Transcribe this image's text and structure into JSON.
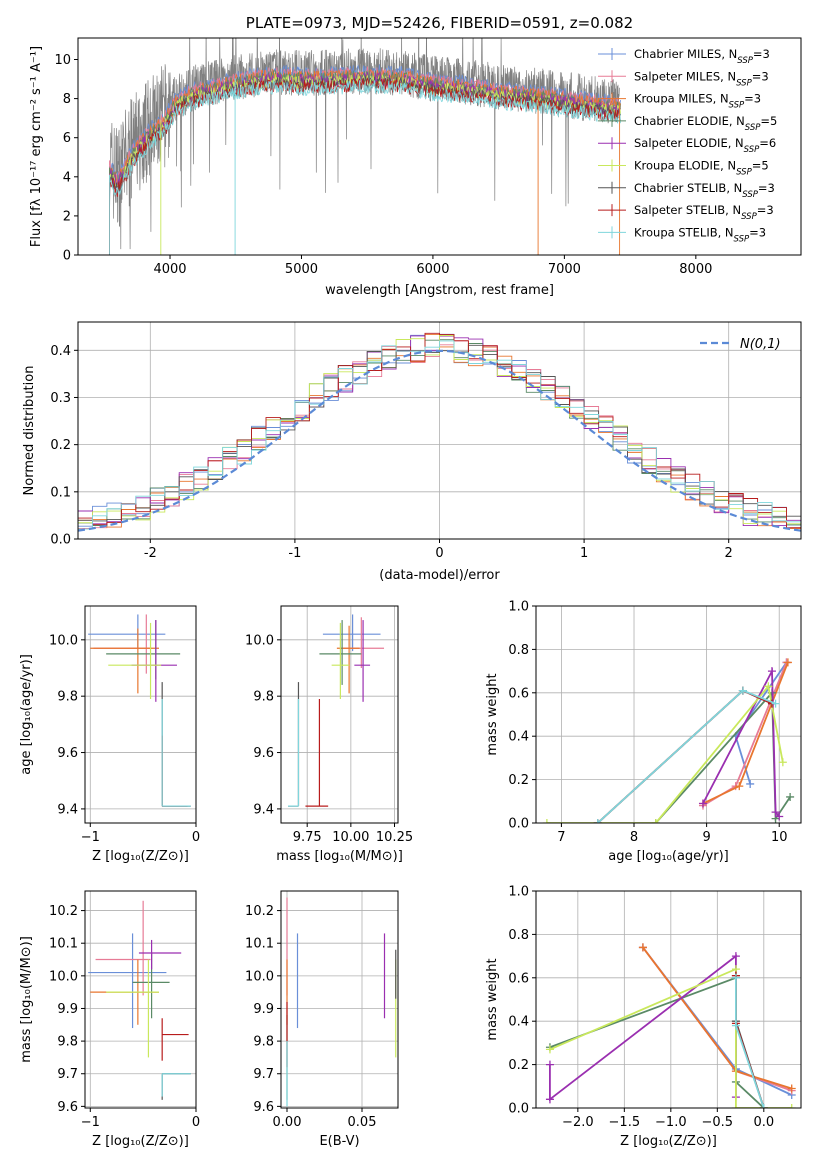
{
  "colors": {
    "Chabrier MILES": "#6a8fd8",
    "Salpeter MILES": "#e77b96",
    "Kroupa MILES": "#e8762f",
    "Chabrier ELODIE": "#5a8a66",
    "Salpeter ELODIE": "#9a2fb0",
    "Kroupa ELODIE": "#c9e85c",
    "Chabrier STELIB": "#555555",
    "Salpeter STELIB": "#b81c1c",
    "Kroupa STELIB": "#7fd6dc",
    "data": "#808080",
    "normal": "#5b8ad6"
  },
  "chart_data": [
    {
      "id": "spectrum",
      "type": "line",
      "title": "PLATE=0973, MJD=52426, FIBERID=0591, z=0.082",
      "xlabel": "wavelength [Angstrom, rest frame]",
      "ylabel": "Flux [fλ 10⁻¹⁷ erg cm⁻² s⁻¹ A⁻¹]",
      "xlim": [
        3300,
        8800
      ],
      "ylim": [
        0,
        11.1
      ],
      "xticks": [
        4000,
        5000,
        6000,
        7000,
        8000
      ],
      "yticks": [
        0,
        2,
        4,
        6,
        8,
        10
      ],
      "data_range": [
        3540,
        7420
      ],
      "model_range": [
        3540,
        7430
      ],
      "continuum": {
        "x": [
          3540,
          3600,
          3680,
          3750,
          3850,
          3950,
          4050,
          4200,
          4400,
          4600,
          4800,
          5000,
          5200,
          5400,
          5600,
          5800,
          6000,
          6200,
          6400,
          6600,
          6800,
          7000,
          7200,
          7430
        ],
        "y": [
          4.6,
          4.0,
          5.0,
          5.8,
          6.5,
          7.0,
          8.1,
          8.6,
          8.9,
          9.2,
          9.4,
          9.3,
          9.3,
          9.4,
          9.4,
          9.3,
          9.0,
          8.9,
          8.7,
          8.5,
          8.4,
          8.2,
          8.0,
          7.8
        ]
      },
      "legend": [
        {
          "label": "Chabrier MILES, N",
          "sub": "SSP",
          "value": "=3"
        },
        {
          "label": "Salpeter MILES, N",
          "sub": "SSP",
          "value": "=3"
        },
        {
          "label": "Kroupa MILES, N",
          "sub": "SSP",
          "value": "=3"
        },
        {
          "label": "Chabrier ELODIE, N",
          "sub": "SSP",
          "value": "=5"
        },
        {
          "label": "Salpeter ELODIE, N",
          "sub": "SSP",
          "value": "=6"
        },
        {
          "label": "Kroupa ELODIE, N",
          "sub": "SSP",
          "value": "=5"
        },
        {
          "label": "Chabrier STELIB, N",
          "sub": "SSP",
          "value": "=3"
        },
        {
          "label": "Salpeter STELIB, N",
          "sub": "SSP",
          "value": "=3"
        },
        {
          "label": "Kroupa STELIB, N",
          "sub": "SSP",
          "value": "=3"
        }
      ],
      "legend_placement": "upper right",
      "grid": false
    },
    {
      "id": "residuals",
      "type": "histogram",
      "xlabel": "(data-model)/error",
      "ylabel": "Normed distribution",
      "xlim": [
        -2.5,
        2.5
      ],
      "ylim": [
        0,
        0.46
      ],
      "xticks": [
        -2,
        -1,
        0,
        1,
        2
      ],
      "yticks": [
        0.0,
        0.1,
        0.2,
        0.3,
        0.4
      ],
      "bin_width": 0.1,
      "legend": "N(0,1)",
      "legend_placement": "upper right",
      "grid": true
    },
    {
      "id": "age-vs-z",
      "type": "errorbar",
      "xlabel": "Z [log₁₀(Z/Z⊙)]",
      "ylabel": "age  [log₁₀(age/yr)]",
      "xlim": [
        -1.05,
        0.0
      ],
      "ylim": [
        9.35,
        10.12
      ],
      "xticks": [
        -1,
        0
      ],
      "xtick_labels": [
        "−1",
        "0"
      ],
      "yticks": [
        9.4,
        9.6,
        9.8,
        10.0
      ],
      "points": [
        {
          "s": "Chabrier MILES",
          "x": -0.55,
          "y": 10.02,
          "xerr": [
            0.47,
            0.26
          ],
          "yerr": [
            0.05,
            0.07
          ]
        },
        {
          "s": "Salpeter MILES",
          "x": -0.47,
          "y": 9.97,
          "xerr": [
            0.5,
            0.05
          ],
          "yerr": [
            0.09,
            0.12
          ]
        },
        {
          "s": "Kroupa MILES",
          "x": -0.55,
          "y": 9.97,
          "xerr": [
            0.45,
            0.2
          ],
          "yerr": [
            0.16,
            0.07
          ]
        },
        {
          "s": "Chabrier ELODIE",
          "x": -0.38,
          "y": 9.95,
          "xerr": [
            0.47,
            0.23
          ],
          "yerr": [
            0.09,
            0.12
          ]
        },
        {
          "s": "Salpeter ELODIE",
          "x": -0.38,
          "y": 9.91,
          "xerr": [
            0.23,
            0.2
          ],
          "yerr": [
            0.13,
            0.16
          ]
        },
        {
          "s": "Kroupa ELODIE",
          "x": -0.43,
          "y": 9.91,
          "xerr": [
            0.4,
            0.1
          ],
          "yerr": [
            0.12,
            0.15
          ]
        },
        {
          "s": "Chabrier STELIB",
          "x": -0.32,
          "y": 9.41,
          "xerr": [
            0.0,
            0.27
          ],
          "yerr": [
            0.0,
            0.44
          ]
        },
        {
          "s": "Salpeter STELIB",
          "x": -0.32,
          "y": 9.41,
          "xerr": [
            0.0,
            0.24
          ],
          "yerr": [
            0.0,
            0.25
          ]
        },
        {
          "s": "Kroupa STELIB",
          "x": -0.32,
          "y": 9.41,
          "xerr": [
            0.0,
            0.27
          ],
          "yerr": [
            0.0,
            0.38
          ]
        }
      ],
      "grid": true
    },
    {
      "id": "age-vs-mass",
      "type": "errorbar",
      "xlabel": "mass [log₁₀(M/M⊙)]",
      "ylabel": "",
      "xlim": [
        9.6,
        10.27
      ],
      "ylim": [
        9.35,
        10.12
      ],
      "xticks": [
        9.75,
        10.0,
        10.25
      ],
      "xtick_labels": [
        "9.75",
        "10.00",
        "10.25"
      ],
      "yticks": [
        9.4,
        9.6,
        9.8,
        10.0
      ],
      "points": [
        {
          "s": "Chabrier MILES",
          "x": 10.01,
          "y": 10.02,
          "xerr": [
            0.17,
            0.16
          ],
          "yerr": [
            0.06,
            0.07
          ]
        },
        {
          "s": "Salpeter MILES",
          "x": 10.06,
          "y": 9.97,
          "xerr": [
            0.12,
            0.13
          ],
          "yerr": [
            0.07,
            0.11
          ]
        },
        {
          "s": "Kroupa MILES",
          "x": 9.99,
          "y": 9.97,
          "xerr": [
            0.07,
            0.06
          ],
          "yerr": [
            0.16,
            0.08
          ]
        },
        {
          "s": "Chabrier ELODIE",
          "x": 9.95,
          "y": 9.95,
          "xerr": [
            0.13,
            0.11
          ],
          "yerr": [
            0.11,
            0.12
          ]
        },
        {
          "s": "Salpeter ELODIE",
          "x": 10.07,
          "y": 9.91,
          "xerr": [
            0.05,
            0.04
          ],
          "yerr": [
            0.13,
            0.16
          ]
        },
        {
          "s": "Kroupa ELODIE",
          "x": 9.94,
          "y": 9.91,
          "xerr": [
            0.05,
            0.05
          ],
          "yerr": [
            0.12,
            0.15
          ]
        },
        {
          "s": "Chabrier STELIB",
          "x": 9.7,
          "y": 9.41,
          "xerr": [
            0.06,
            0.0
          ],
          "yerr": [
            0.0,
            0.44
          ]
        },
        {
          "s": "Salpeter STELIB",
          "x": 9.82,
          "y": 9.41,
          "xerr": [
            0.08,
            0.05
          ],
          "yerr": [
            0.0,
            0.38
          ]
        },
        {
          "s": "Kroupa STELIB",
          "x": 9.7,
          "y": 9.41,
          "xerr": [
            0.06,
            0.0
          ],
          "yerr": [
            0.0,
            0.38
          ]
        }
      ],
      "grid": true
    },
    {
      "id": "weight-vs-age",
      "type": "line",
      "xlabel": "age  [log₁₀(age/yr)]",
      "ylabel": "mass weight",
      "xlim": [
        6.65,
        10.3
      ],
      "ylim": [
        0,
        1.0
      ],
      "xticks": [
        7,
        8,
        9,
        10
      ],
      "yticks": [
        0.0,
        0.2,
        0.4,
        0.6,
        0.8,
        1.0
      ],
      "series": [
        {
          "s": "Chabrier MILES",
          "x": [
            9.6,
            9.4,
            10.1
          ],
          "y": [
            0.18,
            0.4,
            0.74
          ]
        },
        {
          "s": "Salpeter MILES",
          "x": [
            8.95,
            9.4,
            10.1
          ],
          "y": [
            0.08,
            0.17,
            0.74
          ]
        },
        {
          "s": "Kroupa MILES",
          "x": [
            8.95,
            9.45,
            10.12
          ],
          "y": [
            0.09,
            0.17,
            0.74
          ]
        },
        {
          "s": "Chabrier ELODIE",
          "x": [
            8.3,
            9.9,
            9.95,
            10.15
          ],
          "y": [
            0.0,
            0.6,
            0.02,
            0.12
          ]
        },
        {
          "s": "Salpeter ELODIE",
          "x": [
            8.95,
            9.9,
            9.95,
            10.0
          ],
          "y": [
            0.09,
            0.7,
            0.05,
            0.03
          ]
        },
        {
          "s": "Kroupa ELODIE",
          "x": [
            6.8,
            8.3,
            9.85,
            10.05
          ],
          "y": [
            0.0,
            0.0,
            0.63,
            0.28
          ]
        },
        {
          "s": "Chabrier STELIB",
          "x": [
            7.5,
            9.5,
            9.9
          ],
          "y": [
            0.0,
            0.61,
            0.55
          ]
        },
        {
          "s": "Salpeter STELIB",
          "x": [
            7.5,
            9.5,
            9.9
          ],
          "y": [
            0.0,
            0.61,
            0.55
          ]
        },
        {
          "s": "Kroupa STELIB",
          "x": [
            7.5,
            9.5,
            9.95
          ],
          "y": [
            0.0,
            0.61,
            0.55
          ]
        }
      ],
      "grid": true
    },
    {
      "id": "mass-vs-z",
      "type": "errorbar",
      "xlabel": "Z [log₁₀(Z/Z⊙)]",
      "ylabel": "mass [log₁₀(M/M⊙)]",
      "xlim": [
        -1.05,
        0.0
      ],
      "ylim": [
        9.595,
        10.26
      ],
      "xticks": [
        -1,
        0
      ],
      "xtick_labels": [
        "−1",
        "0"
      ],
      "yticks": [
        9.6,
        9.7,
        9.8,
        9.9,
        10.0,
        10.1,
        10.2
      ],
      "points": [
        {
          "s": "Chabrier MILES",
          "x": -0.6,
          "y": 10.01,
          "xerr": [
            0.42,
            0.32
          ],
          "yerr": [
            0.17,
            0.12
          ]
        },
        {
          "s": "Salpeter MILES",
          "x": -0.5,
          "y": 10.05,
          "xerr": [
            0.45,
            0.07
          ],
          "yerr": [
            0.11,
            0.18
          ]
        },
        {
          "s": "Kroupa MILES",
          "x": -0.55,
          "y": 9.95,
          "xerr": [
            0.45,
            0.2
          ],
          "yerr": [
            0.1,
            0.1
          ]
        },
        {
          "s": "Chabrier ELODIE",
          "x": -0.42,
          "y": 9.98,
          "xerr": [
            0.18,
            0.17
          ],
          "yerr": [
            0.11,
            0.09
          ]
        },
        {
          "s": "Salpeter ELODIE",
          "x": -0.42,
          "y": 10.07,
          "xerr": [
            0.12,
            0.28
          ],
          "yerr": [
            0.05,
            0.04
          ]
        },
        {
          "s": "Kroupa ELODIE",
          "x": -0.45,
          "y": 9.95,
          "xerr": [
            0.4,
            0.1
          ],
          "yerr": [
            0.2,
            0.1
          ]
        },
        {
          "s": "Chabrier STELIB",
          "x": -0.32,
          "y": 9.7,
          "xerr": [
            0.0,
            0.27
          ],
          "yerr": [
            0.08,
            0.0
          ]
        },
        {
          "s": "Salpeter STELIB",
          "x": -0.32,
          "y": 9.82,
          "xerr": [
            0.0,
            0.25
          ],
          "yerr": [
            0.08,
            0.05
          ]
        },
        {
          "s": "Kroupa STELIB",
          "x": -0.32,
          "y": 9.7,
          "xerr": [
            0.0,
            0.27
          ],
          "yerr": [
            0.07,
            0.0
          ]
        }
      ],
      "grid": true
    },
    {
      "id": "mass-vs-ebv",
      "type": "errorbar",
      "xlabel": "E(B-V)",
      "ylabel": "",
      "xlim": [
        -0.004,
        0.074
      ],
      "ylim": [
        9.595,
        10.26
      ],
      "xticks": [
        0.0,
        0.05
      ],
      "xtick_labels": [
        "0.00",
        "0.05"
      ],
      "yticks": [
        9.6,
        9.7,
        9.8,
        9.9,
        10.0,
        10.1,
        10.2
      ],
      "points": [
        {
          "s": "Chabrier MILES",
          "x": 0.007,
          "y": 10.01,
          "xerr": [
            0,
            0
          ],
          "yerr": [
            0.17,
            0.12
          ]
        },
        {
          "s": "Salpeter MILES",
          "x": 0.0,
          "y": 10.05,
          "xerr": [
            0,
            0
          ],
          "yerr": [
            0.11,
            0.19
          ]
        },
        {
          "s": "Kroupa MILES",
          "x": 0.0,
          "y": 9.95,
          "xerr": [
            0,
            0
          ],
          "yerr": [
            0.1,
            0.1
          ]
        },
        {
          "s": "Chabrier ELODIE",
          "x": 0.0,
          "y": 9.78,
          "xerr": [
            0,
            0
          ],
          "yerr": [
            0.16,
            0.1
          ]
        },
        {
          "s": "Salpeter ELODIE",
          "x": 0.065,
          "y": 10.03,
          "xerr": [
            0,
            0
          ],
          "yerr": [
            0.16,
            0.1
          ]
        },
        {
          "s": "Kroupa ELODIE",
          "x": 0.0725,
          "y": 9.95,
          "xerr": [
            0,
            0
          ],
          "yerr": [
            0.2,
            0.1
          ]
        },
        {
          "s": "Chabrier STELIB",
          "x": 0.0725,
          "y": 9.98,
          "xerr": [
            0,
            0
          ],
          "yerr": [
            0.05,
            0.1
          ]
        },
        {
          "s": "Salpeter STELIB",
          "x": 0.0,
          "y": 9.82,
          "xerr": [
            0,
            0
          ],
          "yerr": [
            0.1,
            0.1
          ]
        },
        {
          "s": "Kroupa STELIB",
          "x": 0.0,
          "y": 9.7,
          "xerr": [
            0,
            0
          ],
          "yerr": [
            0.1,
            0.1
          ]
        }
      ],
      "grid": true
    },
    {
      "id": "weight-vs-z",
      "type": "line",
      "xlabel": "Z [log₁₀(Z/Z⊙)]",
      "ylabel": "mass weight",
      "xlim": [
        -2.45,
        0.4
      ],
      "ylim": [
        0,
        1.0
      ],
      "xticks": [
        -2.0,
        -1.5,
        -1.0,
        -0.5,
        0.0
      ],
      "xtick_labels": [
        "−2.0",
        "−1.5",
        "−1.0",
        "−0.5",
        "0.0"
      ],
      "yticks": [
        0.0,
        0.2,
        0.4,
        0.6,
        0.8,
        1.0
      ],
      "series": [
        {
          "s": "Chabrier MILES",
          "x": [
            -1.3,
            -0.3,
            0.3
          ],
          "y": [
            0.74,
            0.18,
            0.06
          ]
        },
        {
          "s": "Salpeter MILES",
          "x": [
            -1.3,
            -0.3,
            0.3
          ],
          "y": [
            0.74,
            0.17,
            0.08
          ]
        },
        {
          "s": "Kroupa MILES",
          "x": [
            -1.3,
            -0.3,
            0.3
          ],
          "y": [
            0.74,
            0.17,
            0.09
          ]
        },
        {
          "s": "Chabrier ELODIE",
          "x": [
            -2.3,
            -0.3,
            -0.3,
            0.0
          ],
          "y": [
            0.28,
            0.6,
            0.12,
            0.0
          ]
        },
        {
          "s": "Salpeter ELODIE",
          "x": [
            -2.3,
            -2.3,
            -0.3,
            -0.3
          ],
          "y": [
            0.2,
            0.04,
            0.7,
            0.05
          ]
        },
        {
          "s": "Kroupa ELODIE",
          "x": [
            -2.3,
            -0.3,
            -0.3,
            0.3
          ],
          "y": [
            0.27,
            0.64,
            0.0,
            0.0
          ]
        },
        {
          "s": "Chabrier STELIB",
          "x": [
            -0.3,
            -0.3,
            0.0
          ],
          "y": [
            0.61,
            0.4,
            0.0
          ]
        },
        {
          "s": "Salpeter STELIB",
          "x": [
            -0.3,
            -0.3,
            0.0
          ],
          "y": [
            0.61,
            0.39,
            0.0
          ]
        },
        {
          "s": "Kroupa STELIB",
          "x": [
            -0.3,
            -0.3,
            0.0
          ],
          "y": [
            0.6,
            0.38,
            0.0
          ]
        }
      ],
      "grid": true
    }
  ]
}
